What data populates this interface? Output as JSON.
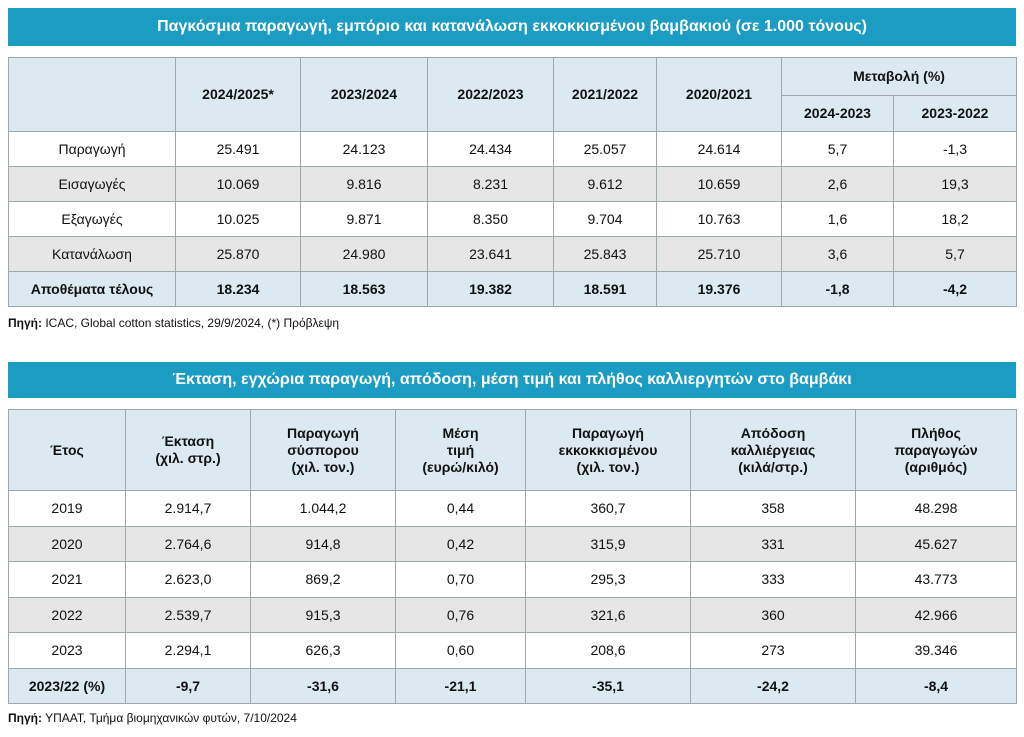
{
  "table1": {
    "title": "Παγκόσμια παραγωγή, εμπόριο και κατανάλωση εκκοκκισμένου βαμβακιού (σε 1.000 τόνους)",
    "headers": [
      "2024/2025*",
      "2023/2024",
      "2022/2023",
      "2021/2022",
      "2020/2021"
    ],
    "change_header": "Μεταβολή (%)",
    "change_subheaders": [
      "2024-2023",
      "2023-2022"
    ],
    "rows": [
      [
        "Παραγωγή",
        "25.491",
        "24.123",
        "24.434",
        "25.057",
        "24.614",
        "5,7",
        "-1,3"
      ],
      [
        "Εισαγωγές",
        "10.069",
        "9.816",
        "8.231",
        "9.612",
        "10.659",
        "2,6",
        "19,3"
      ],
      [
        "Εξαγωγές",
        "10.025",
        "9.871",
        "8.350",
        "9.704",
        "10.763",
        "1,6",
        "18,2"
      ],
      [
        "Κατανάλωση",
        "25.870",
        "24.980",
        "23.641",
        "25.843",
        "25.710",
        "3,6",
        "5,7"
      ],
      [
        "Αποθέματα τέλους",
        "18.234",
        "18.563",
        "19.382",
        "18.591",
        "19.376",
        "-1,8",
        "-4,2"
      ]
    ],
    "source_label": "Πηγή:",
    "source": "ICAC, Global cotton statistics, 29/9/2024, (*) Πρόβλεψη"
  },
  "table2": {
    "title": "Έκταση, εγχώρια παραγωγή, απόδοση, μέση τιμή και πλήθος καλλιεργητών στο βαμβάκι",
    "headers": [
      "Έτος",
      "Έκταση\n(χιλ. στρ.)",
      "Παραγωγή\nσύσπορου\n(χιλ. τον.)",
      "Μέση\nτιμή\n(ευρώ/κιλό)",
      "Παραγωγή\nεκκοκκισμένου\n(χιλ. τον.)",
      "Απόδοση\nκαλλιέργειας\n(κιλά/στρ.)",
      "Πλήθος\nπαραγωγών\n(αριθμός)"
    ],
    "rows": [
      [
        "2019",
        "2.914,7",
        "1.044,2",
        "0,44",
        "360,7",
        "358",
        "48.298"
      ],
      [
        "2020",
        "2.764,6",
        "914,8",
        "0,42",
        "315,9",
        "331",
        "45.627"
      ],
      [
        "2021",
        "2.623,0",
        "869,2",
        "0,70",
        "295,3",
        "333",
        "43.773"
      ],
      [
        "2022",
        "2.539,7",
        "915,3",
        "0,76",
        "321,6",
        "360",
        "42.966"
      ],
      [
        "2023",
        "2.294,1",
        "626,3",
        "0,60",
        "208,6",
        "273",
        "39.346"
      ],
      [
        "2023/22 (%)",
        "-9,7",
        "-31,6",
        "-21,1",
        "-35,1",
        "-24,2",
        "-8,4"
      ]
    ],
    "source_label": "Πηγή:",
    "source": "ΥΠΑΑΤ, Τμήμα βιομηχανικών φυτών, 7/10/2024"
  }
}
